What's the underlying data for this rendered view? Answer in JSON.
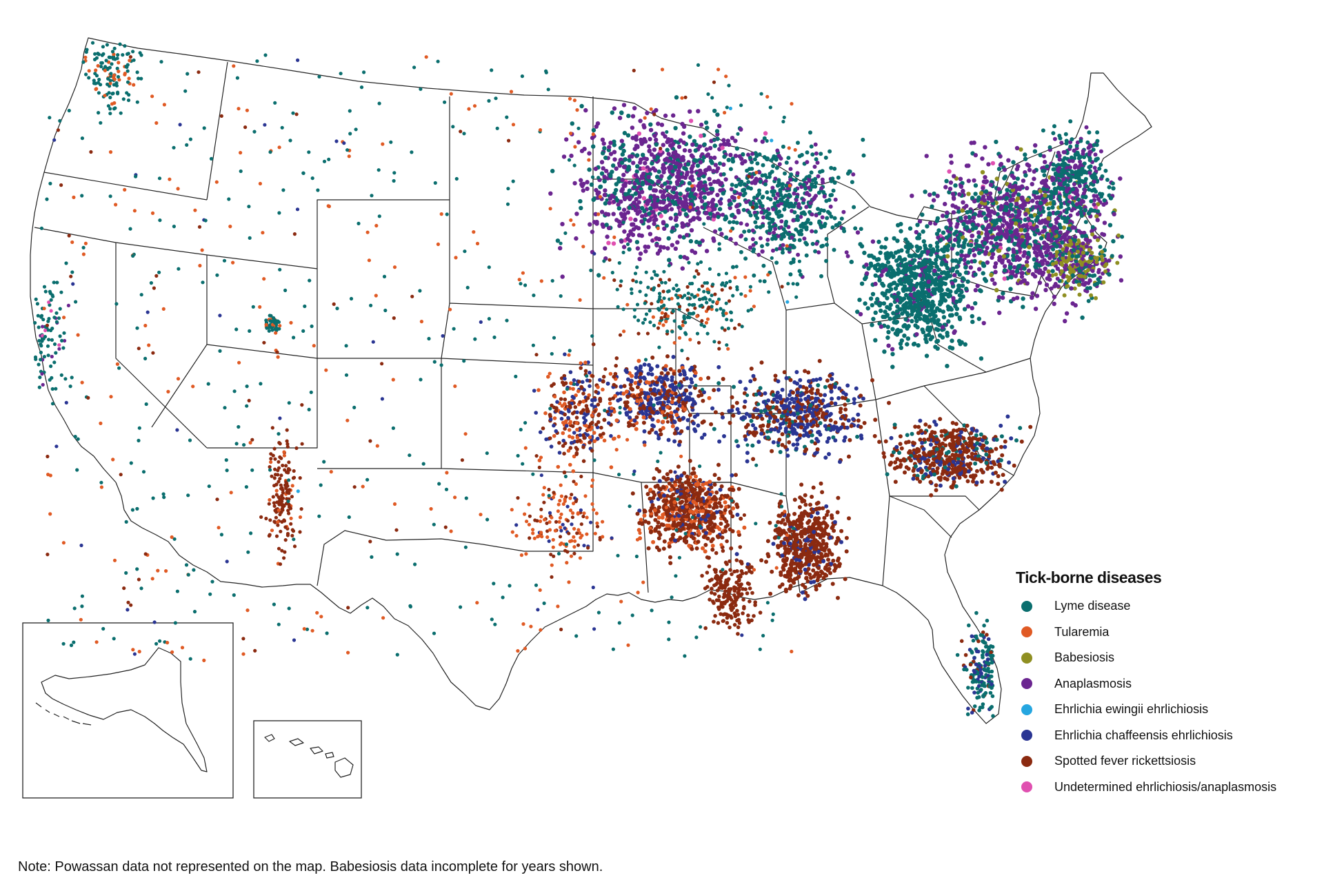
{
  "legend": {
    "title": "Tick-borne diseases",
    "items": [
      {
        "label": "Lyme disease",
        "color": "#0a6e6e"
      },
      {
        "label": "Tularemia",
        "color": "#e05a24"
      },
      {
        "label": "Babesiosis",
        "color": "#8f8f22"
      },
      {
        "label": "Anaplasmosis",
        "color": "#6b2590"
      },
      {
        "label": "Ehrlichia ewingii ehrlichiosis",
        "color": "#25a6e0"
      },
      {
        "label": "Ehrlichia chaffeensis ehrlichiosis",
        "color": "#2a3593"
      },
      {
        "label": "Spotted fever rickettsiosis",
        "color": "#8b2a10"
      },
      {
        "label": "Undetermined ehrlichiosis/anaplasmosis",
        "color": "#e050b0"
      }
    ]
  },
  "footnote": "Note: Powassan data not represented on the map. Babesiosis data incomplete for years shown.",
  "map": {
    "insets": [
      "Alaska",
      "Hawaii"
    ],
    "colors": {
      "background": "#ffffff",
      "borders": "#222222"
    }
  }
}
